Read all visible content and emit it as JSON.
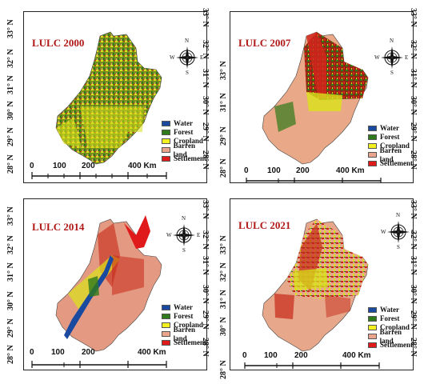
{
  "panels": [
    {
      "title": "LULC 2000",
      "dominant": "#7a8f1e",
      "mix": [
        "#d9e21a",
        "#2f7a1a",
        "#e6a58a",
        "#c62818"
      ]
    },
    {
      "title": "LULC 2007",
      "dominant": "#8a2a10",
      "mix": [
        "#d2241c",
        "#2f7a1a",
        "#e9a887",
        "#d9e21a"
      ]
    },
    {
      "title": "LULC 2014",
      "dominant": "#e49a82",
      "mix": [
        "#c62818",
        "#d9e21a",
        "#2f7a1a",
        "#1a4aa0"
      ]
    },
    {
      "title": "LULC 2021",
      "dominant": "#e7a78b",
      "mix": [
        "#c62818",
        "#d9e21a",
        "#2f7a1a",
        "#e7a78b"
      ]
    }
  ],
  "latitudes": [
    "33° N",
    "32° N",
    "31° N",
    "30° N",
    "29° N",
    "28° N",
    "28° N"
  ],
  "latitude_rows": [
    "33° N",
    "32° N",
    "31° N",
    "30° N",
    "29° N",
    "28° N"
  ],
  "legend": [
    {
      "label": "Water",
      "color": "#1a4aa0"
    },
    {
      "label": "Forest",
      "color": "#2f7a1a"
    },
    {
      "label": "Cropland",
      "color": "#f2f01e"
    },
    {
      "label": "Barren land",
      "color": "#eaa58c"
    },
    {
      "label": "Settlements",
      "color": "#e01a1a"
    }
  ],
  "scale": {
    "labels": [
      "0",
      "100",
      "200",
      "400 Km"
    ]
  },
  "compass": {
    "n": "N",
    "s": "S",
    "e": "E",
    "w": "W"
  },
  "ticks_left_panel": [
    "33° N",
    "32° N",
    "31° N",
    "30° N",
    "29° N",
    "28° N",
    "28° N"
  ],
  "ticks_right_panel": [
    "33° N",
    "32° N",
    "31° N",
    "30° N",
    "29° N",
    "28° N",
    "28° N"
  ]
}
